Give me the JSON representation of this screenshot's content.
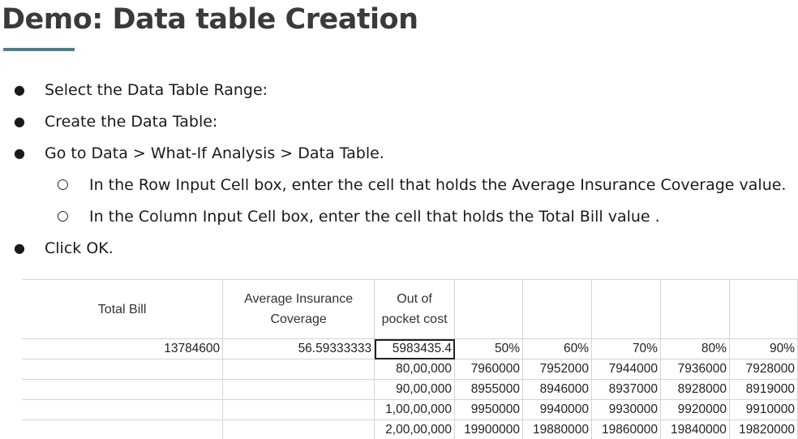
{
  "title": "Demo: Data table Creation",
  "bullets": [
    {
      "level": 1,
      "marker": "●",
      "text": "Select the Data Table Range:"
    },
    {
      "level": 1,
      "marker": "●",
      "text": "Create the Data Table:"
    },
    {
      "level": 1,
      "marker": "●",
      "text": "Go to Data > What-If Analysis > Data Table."
    },
    {
      "level": 2,
      "marker": "○",
      "text": "In the Row Input Cell box, enter the cell that holds the Average Insurance Coverage value."
    },
    {
      "level": 2,
      "marker": "○",
      "text": "In the Column Input Cell box, enter the cell that holds the Total Bill value ."
    },
    {
      "level": 1,
      "marker": "●",
      "text": "Click OK."
    }
  ],
  "table": {
    "headers": {
      "total_bill": "Total Bill",
      "avg_line1": "Average Insurance",
      "avg_line2": "Coverage",
      "oop_line1": "Out of",
      "oop_line2": "pocket cost"
    },
    "row1": {
      "total_bill": "13784600",
      "avg_coverage": "56.59333333",
      "oop": "5983435.4",
      "pct": [
        "50%",
        "60%",
        "70%",
        "80%",
        "90%"
      ]
    },
    "rows": [
      {
        "label": "80,00,000",
        "values": [
          "7960000",
          "7952000",
          "7944000",
          "7936000",
          "7928000"
        ]
      },
      {
        "label": "90,00,000",
        "values": [
          "8955000",
          "8946000",
          "8937000",
          "8928000",
          "8919000"
        ]
      },
      {
        "label": "1,00,00,000",
        "values": [
          "9950000",
          "9940000",
          "9930000",
          "9920000",
          "9910000"
        ]
      },
      {
        "label": "2,00,00,000",
        "values": [
          "19900000",
          "19880000",
          "19860000",
          "19840000",
          "19820000"
        ]
      }
    ]
  }
}
